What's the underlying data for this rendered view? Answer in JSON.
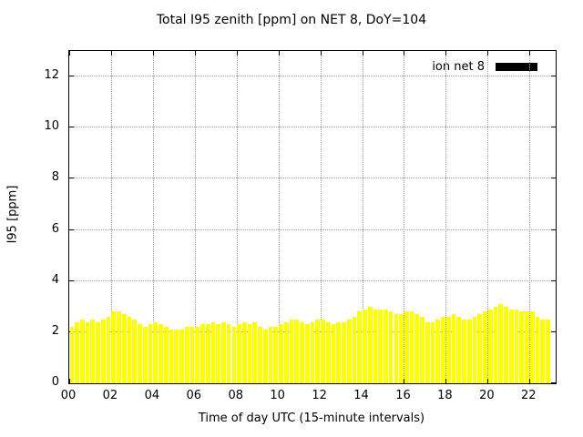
{
  "title": "Total I95 zenith [ppm] on NET 8, DoY=104",
  "legend": {
    "label": "ion net 8",
    "swatch_color": "#000000"
  },
  "chart_data": {
    "type": "bar",
    "title": "Total I95 zenith [ppm] on NET 8, DoY=104",
    "xlabel": "Time of day UTC (15-minute intervals)",
    "ylabel": "I95 [ppm]",
    "bar_color": "#ffff00",
    "grid": true,
    "legend_position": "top-right",
    "xlim": [
      0,
      23.25
    ],
    "ylim": [
      0,
      13
    ],
    "x_ticks": [
      "00",
      "02",
      "04",
      "06",
      "08",
      "10",
      "12",
      "14",
      "16",
      "18",
      "20",
      "22"
    ],
    "x_tick_hours": [
      0,
      2,
      4,
      6,
      8,
      10,
      12,
      14,
      16,
      18,
      20,
      22
    ],
    "y_ticks": [
      0,
      2,
      4,
      6,
      8,
      10,
      12
    ],
    "interval_minutes": 15,
    "start_hour": 0,
    "values": [
      2.2,
      2.4,
      2.5,
      2.4,
      2.5,
      2.4,
      2.5,
      2.6,
      2.8,
      2.8,
      2.7,
      2.6,
      2.5,
      2.3,
      2.2,
      2.3,
      2.4,
      2.3,
      2.2,
      2.1,
      2.1,
      2.1,
      2.2,
      2.2,
      2.2,
      2.3,
      2.3,
      2.4,
      2.3,
      2.4,
      2.3,
      2.2,
      2.3,
      2.4,
      2.3,
      2.4,
      2.2,
      2.1,
      2.2,
      2.2,
      2.3,
      2.4,
      2.5,
      2.5,
      2.4,
      2.3,
      2.4,
      2.5,
      2.5,
      2.4,
      2.3,
      2.4,
      2.4,
      2.5,
      2.6,
      2.8,
      2.9,
      3.0,
      2.9,
      2.9,
      2.9,
      2.8,
      2.7,
      2.7,
      2.8,
      2.8,
      2.7,
      2.6,
      2.4,
      2.4,
      2.5,
      2.6,
      2.6,
      2.7,
      2.6,
      2.5,
      2.5,
      2.6,
      2.7,
      2.8,
      2.9,
      3.0,
      3.1,
      3.0,
      2.9,
      2.9,
      2.8,
      2.8,
      2.8,
      2.6,
      2.5,
      2.5
    ]
  }
}
